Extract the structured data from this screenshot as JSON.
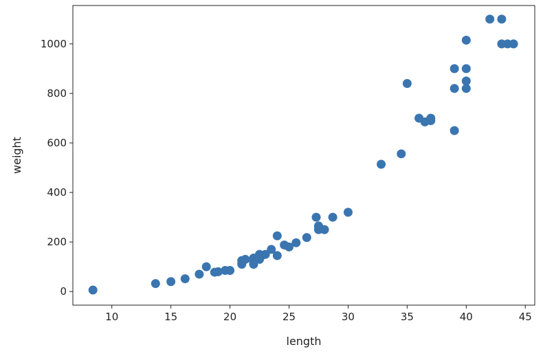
{
  "chart_data": {
    "type": "scatter",
    "title": "",
    "xlabel": "length",
    "ylabel": "weight",
    "xlim": [
      6.7,
      45.8
    ],
    "ylim": [
      -55,
      1155
    ],
    "xticks": [
      10,
      15,
      20,
      25,
      30,
      35,
      40,
      45
    ],
    "yticks": [
      0,
      200,
      400,
      600,
      800,
      1000
    ],
    "grid": false,
    "legend": "none",
    "marker_color": "#3a75b0",
    "series": [
      {
        "x": [
          8.4,
          13.7,
          15.0,
          16.2,
          17.4,
          18.0,
          18.7,
          19.0,
          19.6,
          20.0,
          21.0,
          21.0,
          21.0,
          21.3,
          22.0,
          22.0,
          22.0,
          22.0,
          22.0,
          22.5,
          22.5,
          22.7,
          23.0,
          23.5,
          24.0,
          24.0,
          24.6,
          25.0,
          25.6,
          26.5,
          27.3,
          27.5,
          27.5,
          27.5,
          28.0,
          28.7,
          30.0,
          32.8,
          34.5,
          35.0,
          36.5,
          36.0,
          37.0,
          37.0,
          39.0,
          39.0,
          39.0,
          40.0,
          40.0,
          40.0,
          40.0,
          42.0,
          43.0,
          43.0,
          43.5,
          44.0
        ],
        "y": [
          5.9,
          32.0,
          40.0,
          51.5,
          70.0,
          100.0,
          78.0,
          80.0,
          85.0,
          85.0,
          110.0,
          115.0,
          125.0,
          130.0,
          120.0,
          120.0,
          130.0,
          135.0,
          110.0,
          130.0,
          150.0,
          145.0,
          150.0,
          170.0,
          225.0,
          145.0,
          188.0,
          180.0,
          197.0,
          218.0,
          300.0,
          260.0,
          265.0,
          250.0,
          250.0,
          300.0,
          320.0,
          514.0,
          556.0,
          840.0,
          685.0,
          700.0,
          700.0,
          690.0,
          900.0,
          650.0,
          820.0,
          850.0,
          900.0,
          1015.0,
          820.0,
          1100.0,
          1000.0,
          1100.0,
          1000.0,
          1000.0
        ]
      }
    ]
  }
}
